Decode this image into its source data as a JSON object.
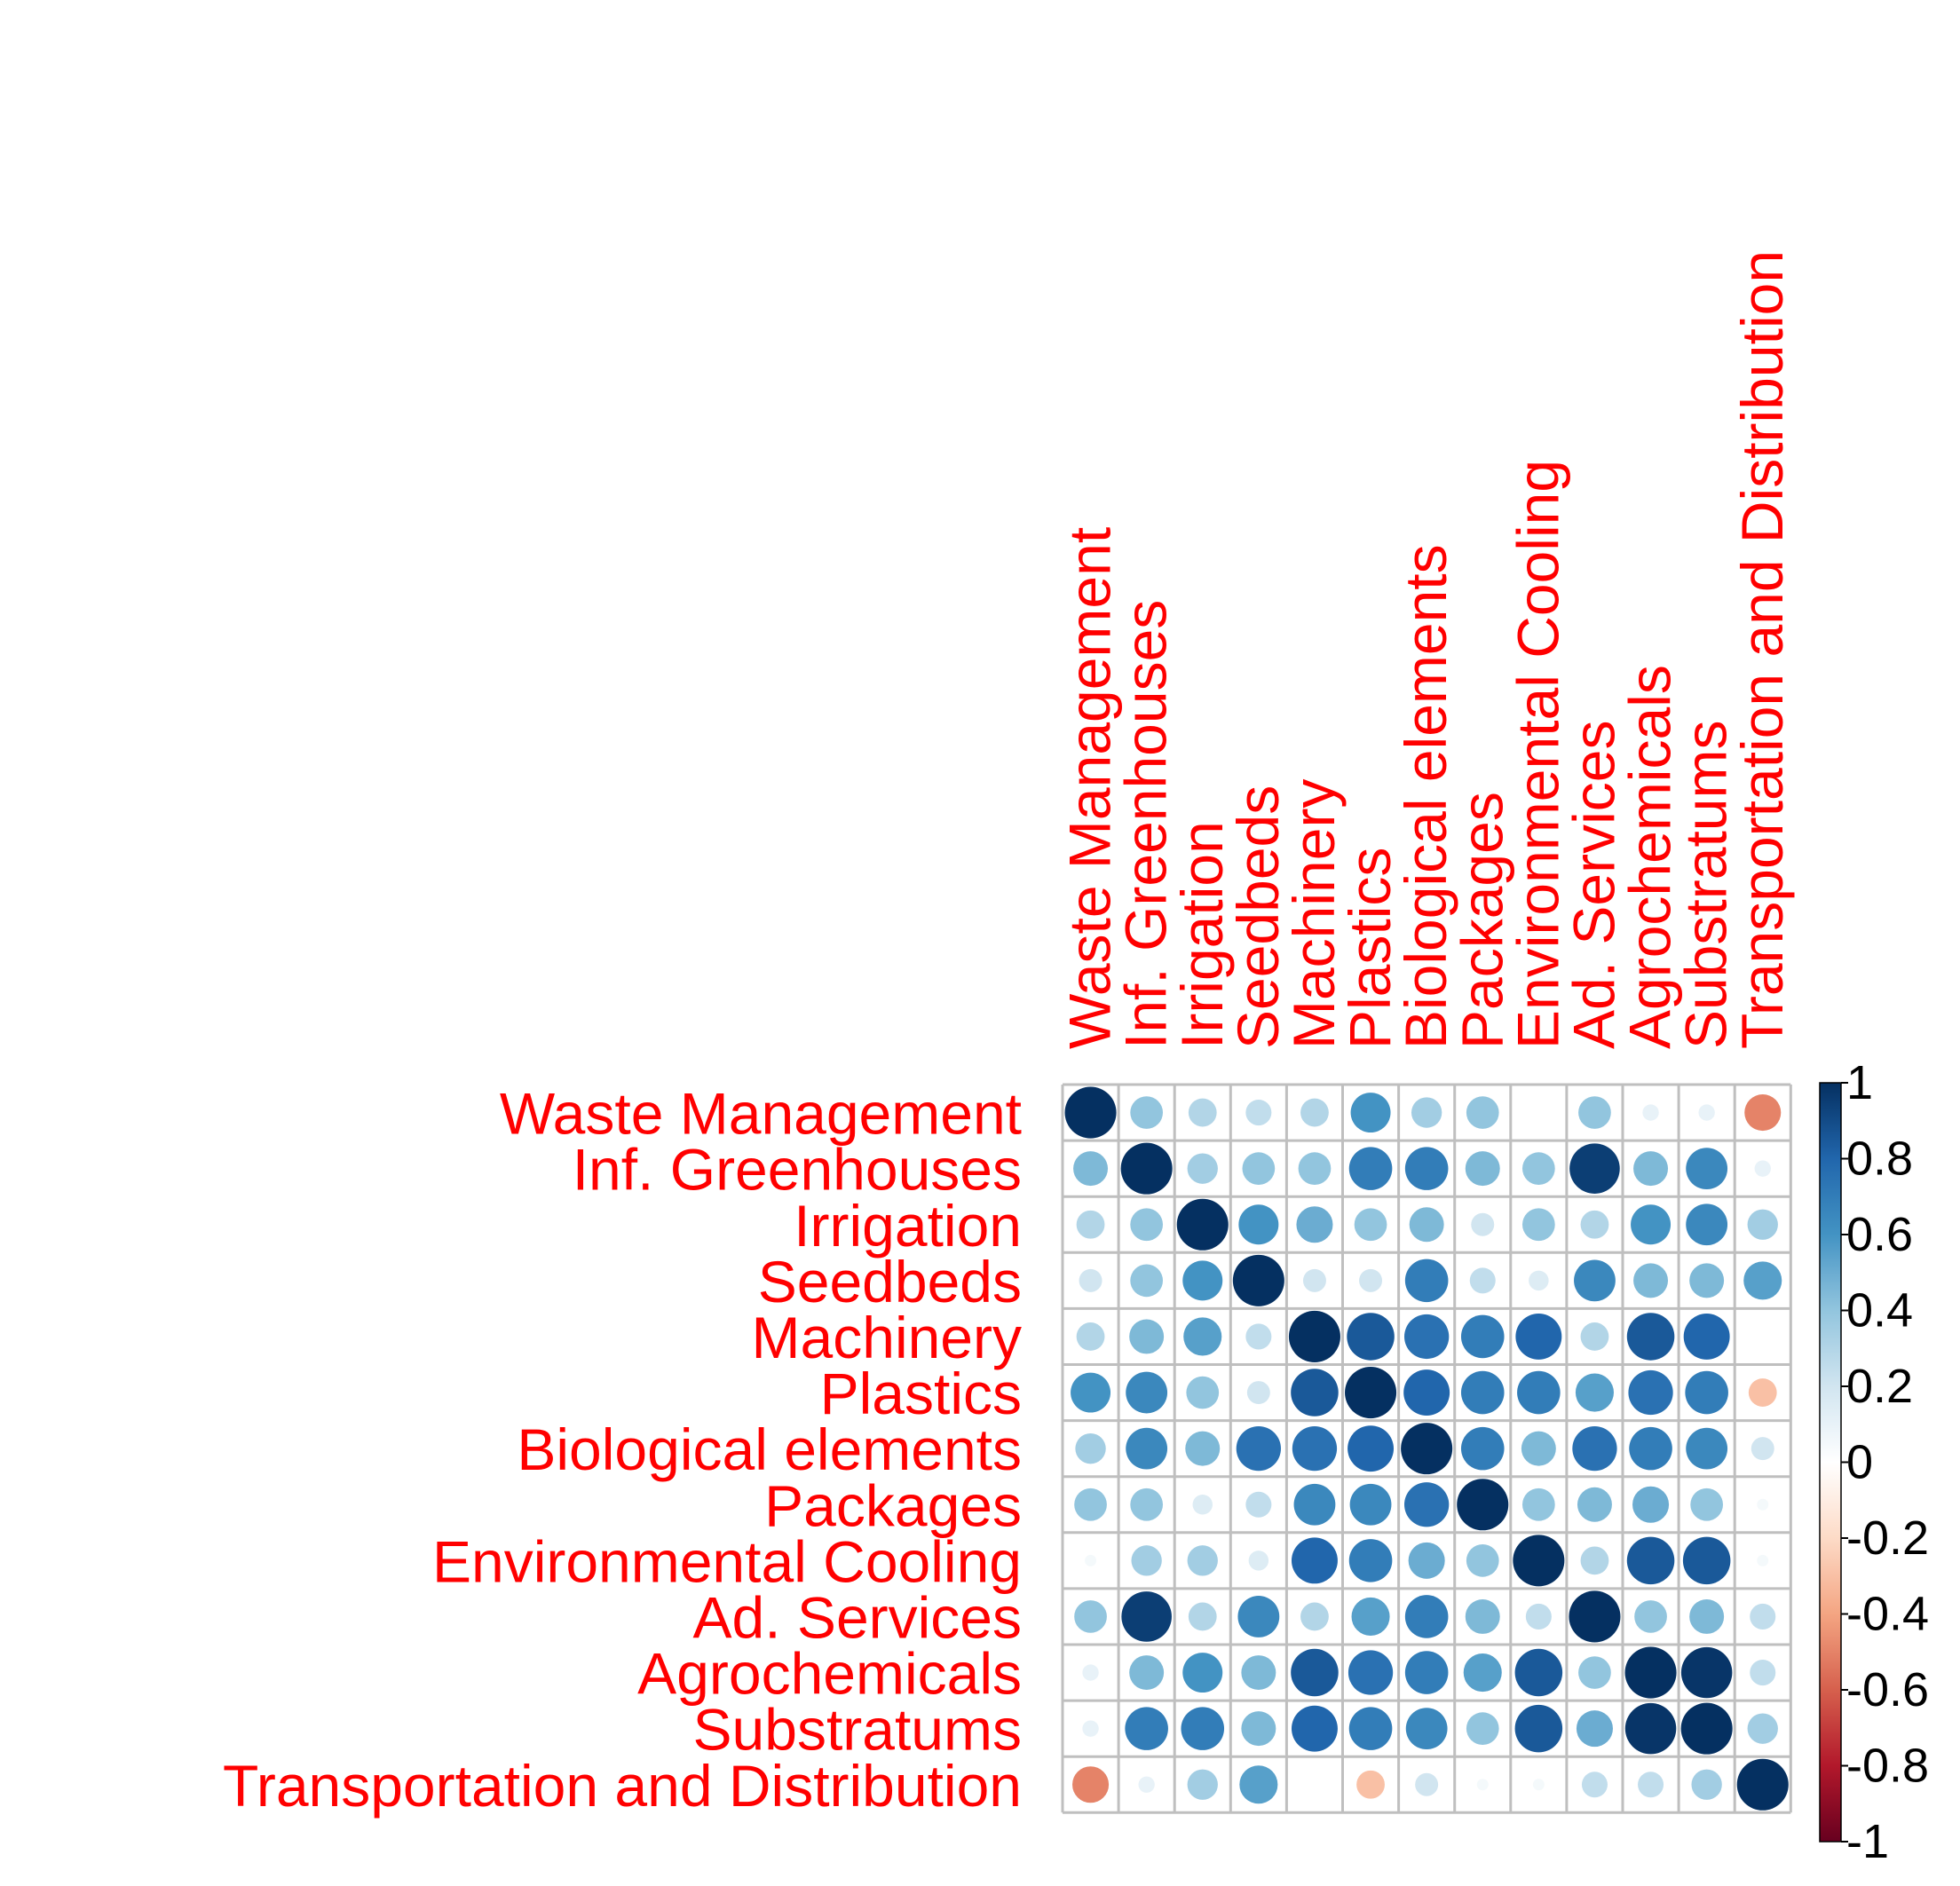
{
  "chart_data": {
    "type": "heatmap",
    "style": "corrplot-circle",
    "variables": [
      "Waste Management",
      "Inf. Greenhouses",
      "Irrigation",
      "Seedbeds",
      "Machinery",
      "Plastics",
      "Biological elements",
      "Packages",
      "Environmental Cooling",
      "Ad. Services",
      "Agrochemicals",
      "Substratums",
      "Transportation and Distribution"
    ],
    "matrix": [
      [
        1.0,
        0.4,
        0.3,
        0.25,
        0.3,
        0.6,
        0.35,
        0.4,
        0.0,
        0.4,
        0.1,
        0.1,
        -0.5
      ],
      [
        0.45,
        1.0,
        0.35,
        0.4,
        0.4,
        0.7,
        0.7,
        0.45,
        0.4,
        0.95,
        0.45,
        0.65,
        0.1
      ],
      [
        0.3,
        0.4,
        1.0,
        0.6,
        0.5,
        0.4,
        0.45,
        0.2,
        0.4,
        0.3,
        0.6,
        0.65,
        0.35
      ],
      [
        0.2,
        0.4,
        0.6,
        1.0,
        0.2,
        0.2,
        0.7,
        0.25,
        0.15,
        0.65,
        0.45,
        0.45,
        0.55
      ],
      [
        0.3,
        0.45,
        0.55,
        0.25,
        1.0,
        0.85,
        0.75,
        0.7,
        0.8,
        0.3,
        0.85,
        0.8,
        0.0
      ],
      [
        0.6,
        0.65,
        0.4,
        0.2,
        0.85,
        1.0,
        0.8,
        0.7,
        0.7,
        0.55,
        0.75,
        0.7,
        -0.3
      ],
      [
        0.35,
        0.65,
        0.45,
        0.75,
        0.75,
        0.8,
        1.0,
        0.7,
        0.45,
        0.75,
        0.7,
        0.65,
        0.2
      ],
      [
        0.4,
        0.4,
        0.15,
        0.25,
        0.65,
        0.65,
        0.75,
        1.0,
        0.4,
        0.45,
        0.5,
        0.4,
        0.05
      ],
      [
        0.05,
        0.35,
        0.35,
        0.15,
        0.8,
        0.7,
        0.5,
        0.4,
        1.0,
        0.3,
        0.85,
        0.85,
        0.05
      ],
      [
        0.4,
        0.95,
        0.3,
        0.65,
        0.3,
        0.55,
        0.7,
        0.45,
        0.25,
        1.0,
        0.4,
        0.45,
        0.25
      ],
      [
        0.1,
        0.45,
        0.6,
        0.45,
        0.85,
        0.75,
        0.7,
        0.55,
        0.85,
        0.4,
        1.0,
        0.98,
        0.25
      ],
      [
        0.1,
        0.7,
        0.7,
        0.45,
        0.8,
        0.7,
        0.65,
        0.4,
        0.85,
        0.5,
        0.98,
        1.0,
        0.35
      ],
      [
        -0.5,
        0.1,
        0.35,
        0.55,
        0.0,
        -0.3,
        0.2,
        0.05,
        0.05,
        0.25,
        0.25,
        0.35,
        1.0
      ]
    ],
    "colorbar": {
      "ticks": [
        "1",
        "0.8",
        "0.6",
        "0.4",
        "0.2",
        "0",
        "-0.2",
        "-0.4",
        "-0.6",
        "-0.8",
        "-1"
      ],
      "range": [
        -1,
        1
      ]
    },
    "title": "",
    "grid": true
  },
  "colors": {
    "label": "#ff0000",
    "grid": "#bfbfbf",
    "frame": "#999999",
    "palette": [
      "#67001f",
      "#b2182b",
      "#d6604d",
      "#f4a582",
      "#fddbc7",
      "#ffffff",
      "#d1e5f0",
      "#92c5de",
      "#4393c3",
      "#2166ac",
      "#053061"
    ]
  }
}
